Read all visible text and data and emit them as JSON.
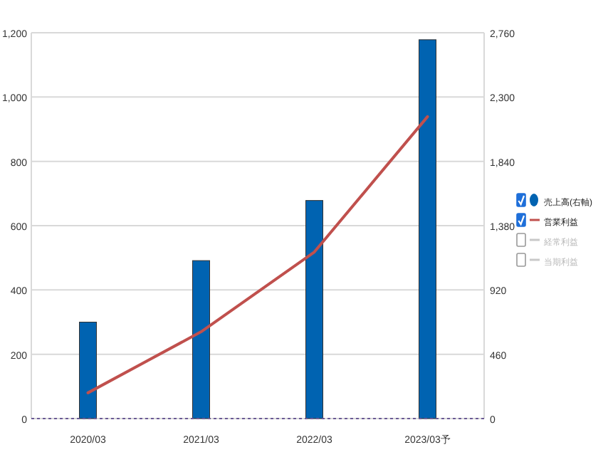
{
  "chart_data": {
    "type": "bar",
    "categories": [
      "2020/03",
      "2021/03",
      "2022/03",
      "2023/03予"
    ],
    "series": [
      {
        "name": "売上高(右軸)",
        "axis": "y2",
        "color": "#0063b1",
        "values": [
          690,
          1130,
          1560,
          2710
        ]
      },
      {
        "name": "営業利益",
        "type": "line",
        "color": "#c0504d",
        "values": [
          80,
          270,
          518,
          939
        ]
      },
      {
        "name": "経常利益",
        "type": "line",
        "color": "#c8c8c8",
        "values": [
          null,
          null,
          null,
          null
        ]
      },
      {
        "name": "当期利益",
        "type": "line",
        "color": "#c8c8c8",
        "values": [
          null,
          null,
          null,
          null
        ]
      }
    ],
    "ylim": [
      0,
      1200
    ],
    "yticks": [
      0,
      {
        "value": 200,
        "label": "200"
      },
      {
        "value": 400,
        "label": "400"
      },
      {
        "value": 600,
        "label": "600"
      },
      {
        "value": 800,
        "label": "800"
      },
      {
        "value": 1000,
        "label": "1,000"
      },
      {
        "value": 1200,
        "label": "1,200"
      }
    ],
    "y2lim": [
      0,
      2760
    ],
    "y2ticks": [
      0,
      460,
      920,
      {
        "value": 1380,
        "label": "1,380"
      },
      {
        "value": 1840,
        "label": "1,840"
      },
      {
        "value": 2300,
        "label": "2,300"
      },
      {
        "value": 2760,
        "label": "2,760"
      }
    ],
    "grid": "y",
    "legend": "right"
  }
}
